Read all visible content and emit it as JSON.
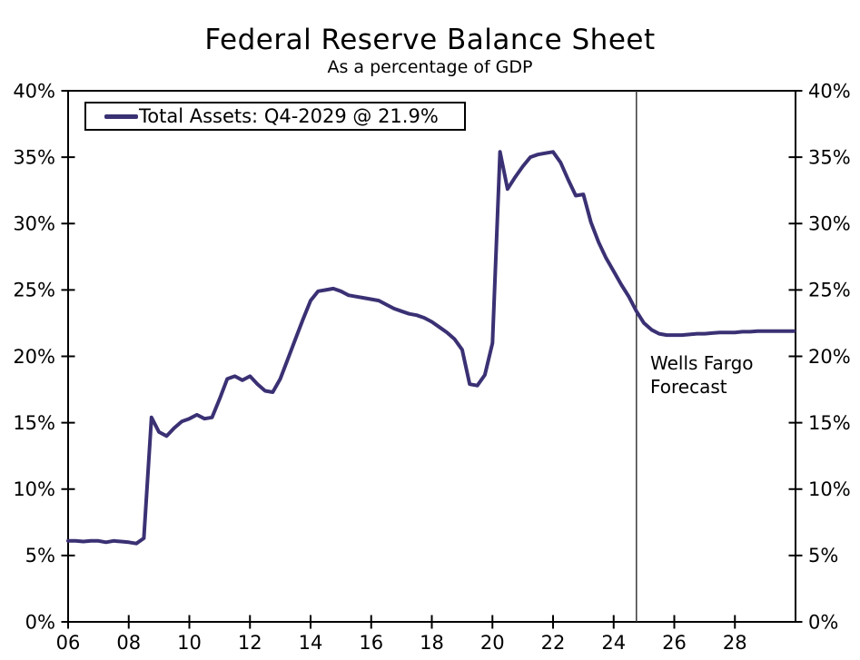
{
  "title": "Federal Reserve Balance Sheet",
  "subtitle": "As a percentage of GDP",
  "legend": {
    "label": "Total Assets: Q4-2029 @ 21.9%"
  },
  "annotation": {
    "line1": "Wells Fargo",
    "line2": "Forecast"
  },
  "colors": {
    "line": "#3a3174",
    "axis": "#000000",
    "text": "#000000",
    "forecast_divider": "#3a3a3a",
    "background": "#ffffff"
  },
  "chart_data": {
    "type": "line",
    "title": "Federal Reserve Balance Sheet",
    "subtitle": "As a percentage of GDP",
    "xlabel": "",
    "ylabel": "",
    "xlim": [
      2006,
      2030
    ],
    "ylim": [
      0,
      40
    ],
    "grid": false,
    "legend_position": "top-left",
    "right_axis_mirrored": true,
    "x_tick_labels": [
      "06",
      "08",
      "10",
      "12",
      "14",
      "16",
      "18",
      "20",
      "22",
      "24",
      "26",
      "28"
    ],
    "x_tick_values": [
      2006,
      2008,
      2010,
      2012,
      2014,
      2016,
      2018,
      2020,
      2022,
      2024,
      2026,
      2028
    ],
    "y_tick_labels": [
      "0%",
      "5%",
      "10%",
      "15%",
      "20%",
      "25%",
      "30%",
      "35%",
      "40%"
    ],
    "y_tick_values": [
      0,
      5,
      10,
      15,
      20,
      25,
      30,
      35,
      40
    ],
    "forecast_divider_x": 2024.75,
    "series": [
      {
        "name": "Total Assets: Q4-2029 @ 21.9%",
        "final_label": "Q4-2029 @ 21.9%",
        "points": [
          [
            2006.0,
            6.1
          ],
          [
            2006.25,
            6.1
          ],
          [
            2006.5,
            6.05
          ],
          [
            2006.75,
            6.1
          ],
          [
            2007.0,
            6.1
          ],
          [
            2007.25,
            6.0
          ],
          [
            2007.5,
            6.1
          ],
          [
            2007.75,
            6.05
          ],
          [
            2008.0,
            6.0
          ],
          [
            2008.25,
            5.9
          ],
          [
            2008.5,
            6.3
          ],
          [
            2008.75,
            15.4
          ],
          [
            2009.0,
            14.3
          ],
          [
            2009.25,
            14.0
          ],
          [
            2009.5,
            14.6
          ],
          [
            2009.75,
            15.1
          ],
          [
            2010.0,
            15.3
          ],
          [
            2010.25,
            15.6
          ],
          [
            2010.5,
            15.3
          ],
          [
            2010.75,
            15.4
          ],
          [
            2011.0,
            16.8
          ],
          [
            2011.25,
            18.3
          ],
          [
            2011.5,
            18.5
          ],
          [
            2011.75,
            18.2
          ],
          [
            2012.0,
            18.5
          ],
          [
            2012.25,
            17.9
          ],
          [
            2012.5,
            17.4
          ],
          [
            2012.75,
            17.3
          ],
          [
            2013.0,
            18.3
          ],
          [
            2013.25,
            19.8
          ],
          [
            2013.5,
            21.3
          ],
          [
            2013.75,
            22.8
          ],
          [
            2014.0,
            24.2
          ],
          [
            2014.25,
            24.9
          ],
          [
            2014.5,
            25.0
          ],
          [
            2014.75,
            25.1
          ],
          [
            2015.0,
            24.9
          ],
          [
            2015.25,
            24.6
          ],
          [
            2015.5,
            24.5
          ],
          [
            2015.75,
            24.4
          ],
          [
            2016.0,
            24.3
          ],
          [
            2016.25,
            24.2
          ],
          [
            2016.5,
            23.9
          ],
          [
            2016.75,
            23.6
          ],
          [
            2017.0,
            23.4
          ],
          [
            2017.25,
            23.2
          ],
          [
            2017.5,
            23.1
          ],
          [
            2017.75,
            22.9
          ],
          [
            2018.0,
            22.6
          ],
          [
            2018.25,
            22.2
          ],
          [
            2018.5,
            21.8
          ],
          [
            2018.75,
            21.3
          ],
          [
            2019.0,
            20.5
          ],
          [
            2019.25,
            17.9
          ],
          [
            2019.5,
            17.8
          ],
          [
            2019.75,
            18.6
          ],
          [
            2020.0,
            21.0
          ],
          [
            2020.25,
            35.4
          ],
          [
            2020.5,
            32.6
          ],
          [
            2020.75,
            33.5
          ],
          [
            2021.0,
            34.3
          ],
          [
            2021.25,
            35.0
          ],
          [
            2021.5,
            35.2
          ],
          [
            2021.75,
            35.3
          ],
          [
            2022.0,
            35.4
          ],
          [
            2022.25,
            34.6
          ],
          [
            2022.5,
            33.3
          ],
          [
            2022.75,
            32.1
          ],
          [
            2023.0,
            32.2
          ],
          [
            2023.25,
            30.1
          ],
          [
            2023.5,
            28.6
          ],
          [
            2023.75,
            27.4
          ],
          [
            2024.0,
            26.4
          ],
          [
            2024.25,
            25.4
          ],
          [
            2024.5,
            24.5
          ],
          [
            2024.75,
            23.4
          ],
          [
            2025.0,
            22.5
          ],
          [
            2025.25,
            22.0
          ],
          [
            2025.5,
            21.7
          ],
          [
            2025.75,
            21.6
          ],
          [
            2026.0,
            21.6
          ],
          [
            2026.25,
            21.6
          ],
          [
            2026.5,
            21.65
          ],
          [
            2026.75,
            21.7
          ],
          [
            2027.0,
            21.7
          ],
          [
            2027.25,
            21.75
          ],
          [
            2027.5,
            21.8
          ],
          [
            2027.75,
            21.8
          ],
          [
            2028.0,
            21.8
          ],
          [
            2028.25,
            21.85
          ],
          [
            2028.5,
            21.85
          ],
          [
            2028.75,
            21.9
          ],
          [
            2029.0,
            21.9
          ],
          [
            2029.25,
            21.9
          ],
          [
            2029.5,
            21.9
          ],
          [
            2029.75,
            21.9
          ],
          [
            2029.95,
            21.9
          ]
        ]
      }
    ],
    "annotations": [
      {
        "text": "Wells Fargo Forecast",
        "x": 2025.2,
        "y": 19.5
      }
    ]
  }
}
